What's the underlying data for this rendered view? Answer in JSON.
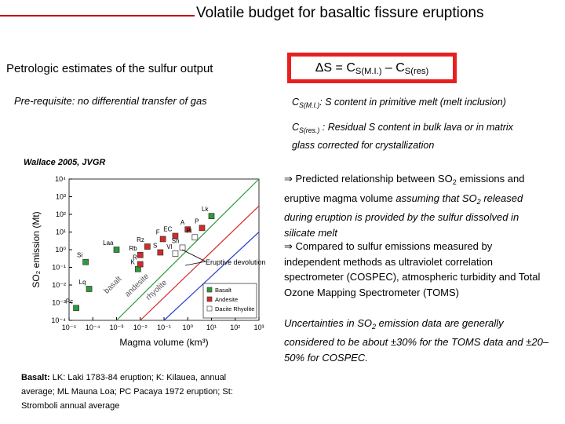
{
  "title": "Volatile budget for basaltic fissure eruptions",
  "left_heading": "Petrologic estimates of the sulfur output",
  "prerequisite": "Pre-requisite: no differential transfer of gas",
  "formula": {
    "lhs": "ΔS = C",
    "sub1": "S(M.I.)",
    "minus": " – C",
    "sub2": "S(res)"
  },
  "definitions": [
    {
      "symbol": "C",
      "sub": "S(M.I.)",
      "text": ": S content in primitive melt (melt inclusion)"
    },
    {
      "symbol": "C",
      "sub": "S(res.)",
      "text": " : Residual S content in bulk lava or in matrix glass corrected for crystallization"
    }
  ],
  "source": "Wallace 2005, JVGR",
  "bullets": [
    {
      "parts": [
        "⇒ Predicted relationship between SO",
        "2",
        " emissions and eruptive magma volume ",
        "assuming that SO",
        "2",
        " released during eruption is provided by the sulfur dissolved in silicate melt"
      ]
    },
    {
      "parts": [
        "⇒ Compared to sulfur emissions measured by independent methods as ultraviolet correlation spectrometer (COSPEC), atmospheric turbidity and Total Ozone Mapping Spectrometer (TOMS)"
      ]
    }
  ],
  "uncertainty": [
    "Uncertainties in SO",
    "2",
    " emission data are generally considered to be about ±30% for the TOMS data and ±20–50% for COSPEC."
  ],
  "caption": {
    "label": "Basalt:",
    "text": " LK: Laki 1783-84 eruption; K: Kilauea, annual average; ML Mauna Loa; PC Pacaya 1972 eruption; St: Stromboli annual average"
  },
  "chart_data": {
    "type": "scatter",
    "x_label": "Magma volume (km³)",
    "y_label": "SO₂ emission (Mt)",
    "xscale": "log",
    "yscale": "log",
    "xlim": [
      1e-05,
      1000
    ],
    "ylim": [
      0.0001,
      10000
    ],
    "xticks": [
      {
        "value": 1e-05,
        "label": "10⁻⁵"
      },
      {
        "value": 0.0001,
        "label": "10⁻⁴"
      },
      {
        "value": 0.001,
        "label": "10⁻³"
      },
      {
        "value": 0.01,
        "label": "10⁻²"
      },
      {
        "value": 0.1,
        "label": "10⁻¹"
      },
      {
        "value": 1,
        "label": "10⁰"
      },
      {
        "value": 10,
        "label": "10¹"
      },
      {
        "value": 100,
        "label": "10²"
      },
      {
        "value": 1000,
        "label": "10³"
      }
    ],
    "yticks": [
      {
        "value": 0.0001,
        "label": "10⁻⁴"
      },
      {
        "value": 0.001,
        "label": "10⁻³"
      },
      {
        "value": 0.01,
        "label": "10⁻²"
      },
      {
        "value": 0.1,
        "label": "10⁻¹"
      },
      {
        "value": 1,
        "label": "10⁰"
      },
      {
        "value": 10,
        "label": "10¹"
      },
      {
        "value": 100,
        "label": "10²"
      },
      {
        "value": 1000,
        "label": "10³"
      },
      {
        "value": 10000,
        "label": "10⁴"
      }
    ],
    "grid": false,
    "legend_position": "lower right",
    "series": [
      {
        "name": "Basalt",
        "color": "#2e9a3a",
        "labels": [
          "Lk",
          "Laa",
          "Si",
          "Lq",
          "Pc",
          "K"
        ],
        "x": [
          10,
          0.001,
          5e-05,
          7e-05,
          2e-05,
          0.008
        ],
        "values": [
          80,
          1,
          0.2,
          0.006,
          0.0005,
          0.08
        ]
      },
      {
        "name": "Andesite",
        "color": "#d42a2a",
        "labels": [
          "P",
          "A",
          "EC",
          "F",
          "Rz",
          "Rb",
          "S",
          "R"
        ],
        "x": [
          4,
          1,
          0.3,
          0.09,
          0.02,
          0.01,
          0.07,
          0.01
        ],
        "values": [
          17,
          14,
          6,
          4,
          1.5,
          0.5,
          0.7,
          0.15
        ]
      },
      {
        "name": "Dacite Rhyolite",
        "color": "#ffffff",
        "labels": [
          "Pi",
          "Sh",
          "Vl"
        ],
        "x": [
          2,
          0.6,
          0.3
        ],
        "values": [
          5,
          1.3,
          0.6
        ]
      }
    ],
    "lines": [
      {
        "name": "basalt",
        "color": "#2e9a3a",
        "x": [
          0.001,
          1000
        ],
        "values": [
          0.0001,
          10000
        ]
      },
      {
        "name": "andesite",
        "color": "#d42a2a",
        "x": [
          0.01,
          1000
        ],
        "values": [
          0.0001,
          300
        ]
      },
      {
        "name": "rhyolite",
        "color": "#2a3ed4",
        "x": [
          0.1,
          1000
        ],
        "values": [
          0.0001,
          10
        ]
      }
    ],
    "annotation": "Eruptive devolution"
  }
}
